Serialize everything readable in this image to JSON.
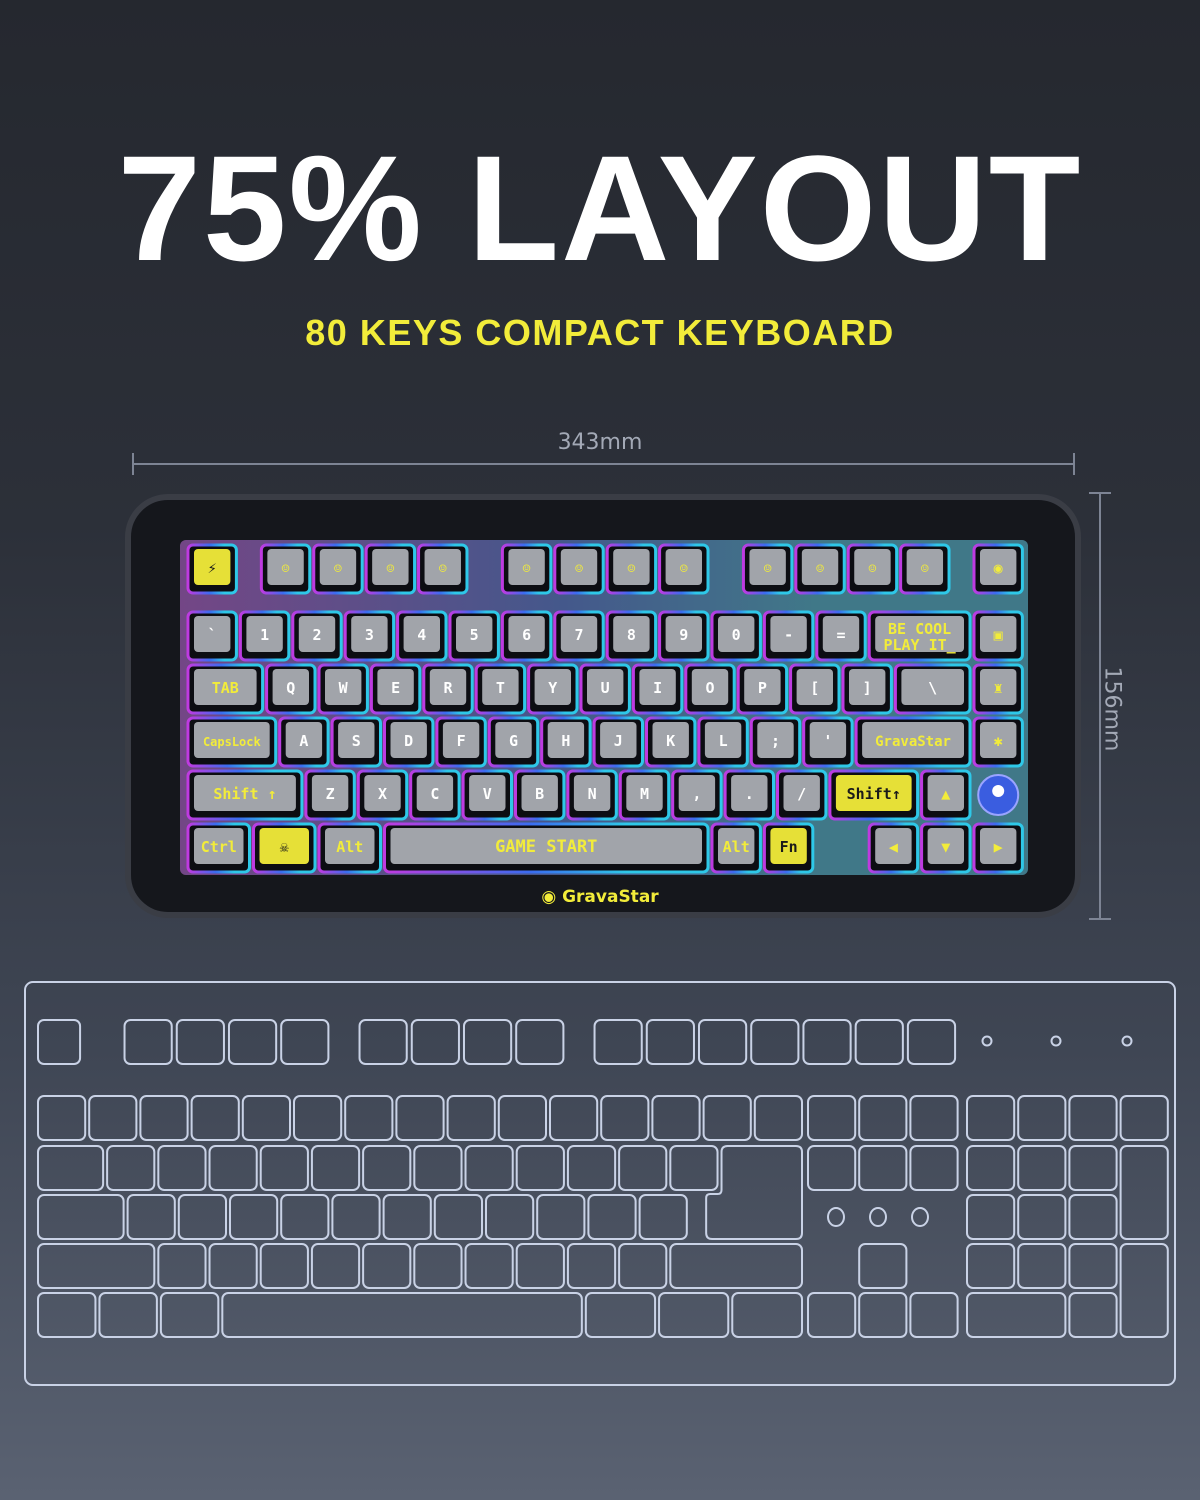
{
  "headline": "75% LAYOUT",
  "subheadline": "80 KEYS COMPACT KEYBOARD",
  "dimensions": {
    "width": "343mm",
    "height": "156mm"
  },
  "keyboard": {
    "brand": "GravaStar",
    "enter_key_logo": "GravaStar",
    "backspace_legend": [
      "BE COOL",
      "PLAY IT_"
    ],
    "space_legend": "GAME START",
    "number_row": [
      "`",
      "1",
      "2",
      "3",
      "4",
      "5",
      "6",
      "7",
      "8",
      "9",
      "0",
      "-",
      "="
    ],
    "top_row": [
      "Q",
      "W",
      "E",
      "R",
      "T",
      "Y",
      "U",
      "I",
      "O",
      "P",
      "[",
      "]",
      "\\"
    ],
    "home_row": [
      "A",
      "S",
      "D",
      "F",
      "G",
      "H",
      "J",
      "K",
      "L",
      ";",
      "'"
    ],
    "bottom_row": [
      "Z",
      "X",
      "C",
      "V",
      "B",
      "N",
      "M",
      ",",
      ".",
      "/"
    ],
    "tab": "TAB",
    "caps": "CapsLock",
    "lshift": "Shift ↑",
    "rshift": "Shift↑",
    "ctrl": "Ctrl",
    "alt": "Alt",
    "ralt": "Alt",
    "fn": "Fn",
    "colors": {
      "accent_yellow": "#f2ec3a",
      "glow_purple": "#c03ae0",
      "glow_blue": "#3a6cf0",
      "glow_cyan": "#2ec8e8",
      "outline": "#c9d2e6"
    }
  }
}
